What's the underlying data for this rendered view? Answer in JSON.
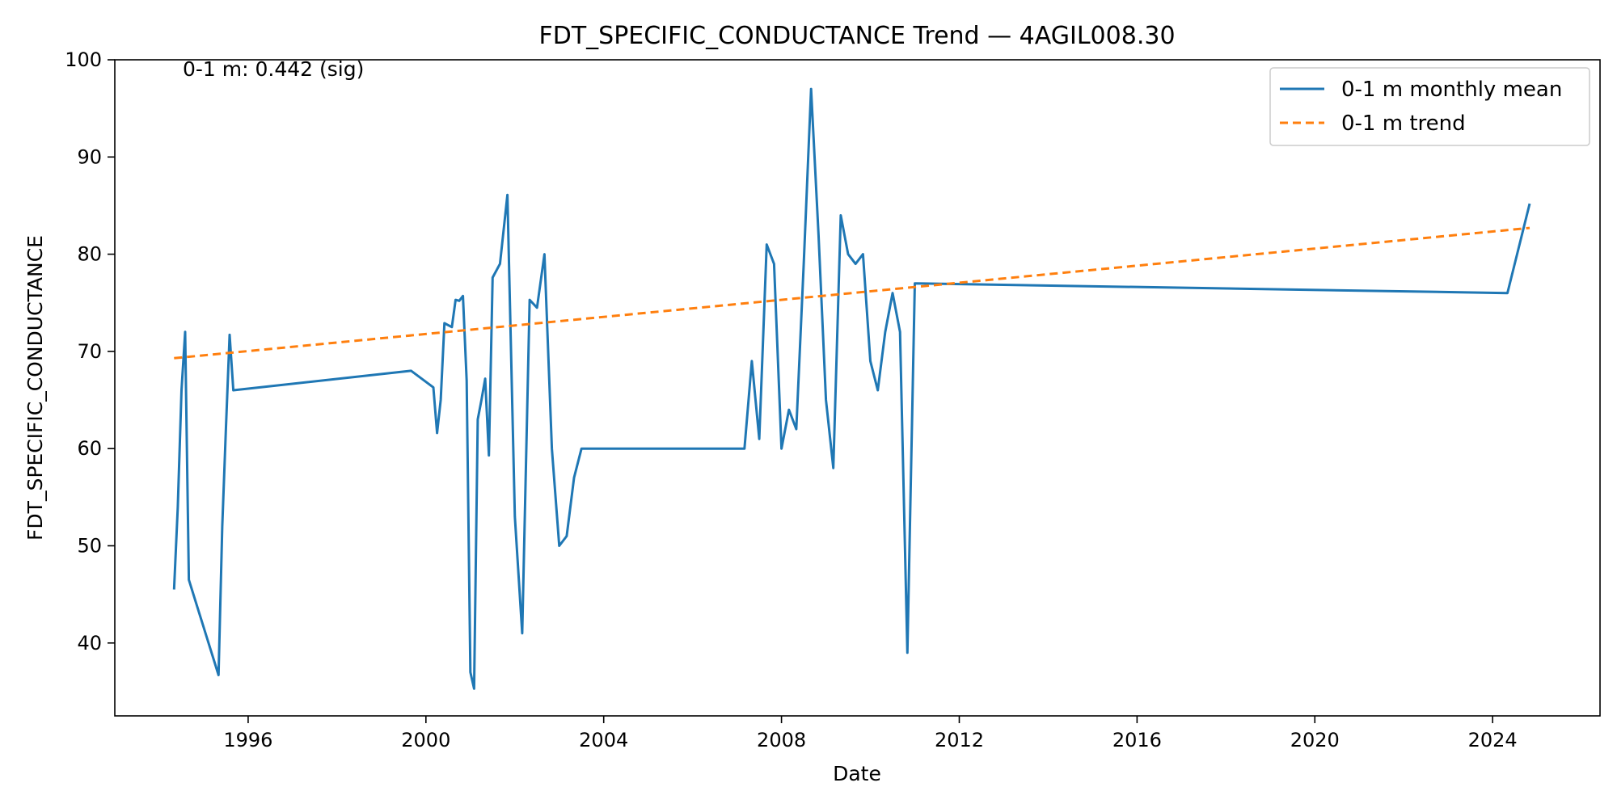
{
  "chart_data": {
    "type": "line",
    "title": "FDT_SPECIFIC_CONDUCTANCE Trend — 4AGIL008.30",
    "xlabel": "Date",
    "ylabel": "FDT_SPECIFIC_CONDUCTANCE",
    "annotation": "0-1 m: 0.442 (sig)",
    "xlim": [
      "1993-01-01",
      "2026-06-01"
    ],
    "ylim": [
      32.5,
      100
    ],
    "x_ticks": [
      "1996",
      "2000",
      "2004",
      "2008",
      "2012",
      "2016",
      "2020",
      "2024"
    ],
    "y_ticks": [
      "40",
      "50",
      "60",
      "70",
      "80",
      "90",
      "100"
    ],
    "grid": false,
    "legend_position": "top-right",
    "colors": {
      "series": "#1f77b4",
      "trend": "#ff7f0e"
    },
    "series": [
      {
        "name": "0-1 m monthly mean",
        "style": "solid",
        "x": [
          "1994-05",
          "1994-06",
          "1994-07",
          "1994-08",
          "1994-09",
          "1995-05",
          "1995-06",
          "1995-07",
          "1995-08",
          "1995-09",
          "1999-09",
          "2000-03",
          "2000-04",
          "2000-05",
          "2000-06",
          "2000-08",
          "2000-09",
          "2000-10",
          "2000-11",
          "2000-12",
          "2001-01",
          "2001-02",
          "2001-03",
          "2001-04",
          "2001-05",
          "2001-06",
          "2001-07",
          "2001-09",
          "2001-11",
          "2002-01",
          "2002-03",
          "2002-05",
          "2002-07",
          "2002-09",
          "2002-11",
          "2003-01",
          "2003-03",
          "2003-05",
          "2003-07",
          "2007-03",
          "2007-05",
          "2007-07",
          "2007-09",
          "2007-11",
          "2008-01",
          "2008-03",
          "2008-05",
          "2008-07",
          "2008-09",
          "2008-11",
          "2009-01",
          "2009-03",
          "2009-05",
          "2009-07",
          "2009-09",
          "2009-11",
          "2010-01",
          "2010-03",
          "2010-05",
          "2010-07",
          "2010-09",
          "2010-11",
          "2011-01",
          "2024-05",
          "2024-11"
        ],
        "y": [
          45.5,
          54,
          66,
          72,
          46.5,
          36.7,
          52,
          62,
          71.7,
          66,
          68,
          66.3,
          61.6,
          65,
          72.9,
          72.5,
          75.3,
          75.2,
          75.7,
          67,
          37,
          35.3,
          63,
          65,
          67.2,
          59.3,
          77.6,
          79,
          86.1,
          53,
          41,
          75.3,
          74.5,
          80,
          60,
          50,
          51,
          57,
          60,
          60,
          69,
          61,
          81,
          79,
          60,
          64,
          62,
          79,
          97,
          82,
          65,
          58,
          84,
          80,
          79,
          80,
          69,
          66,
          72,
          76,
          72,
          39,
          77,
          76,
          85.2
        ]
      },
      {
        "name": "0-1 m trend",
        "style": "dashed",
        "x": [
          "1994-05",
          "2024-11"
        ],
        "y": [
          69.3,
          82.7
        ]
      }
    ]
  }
}
